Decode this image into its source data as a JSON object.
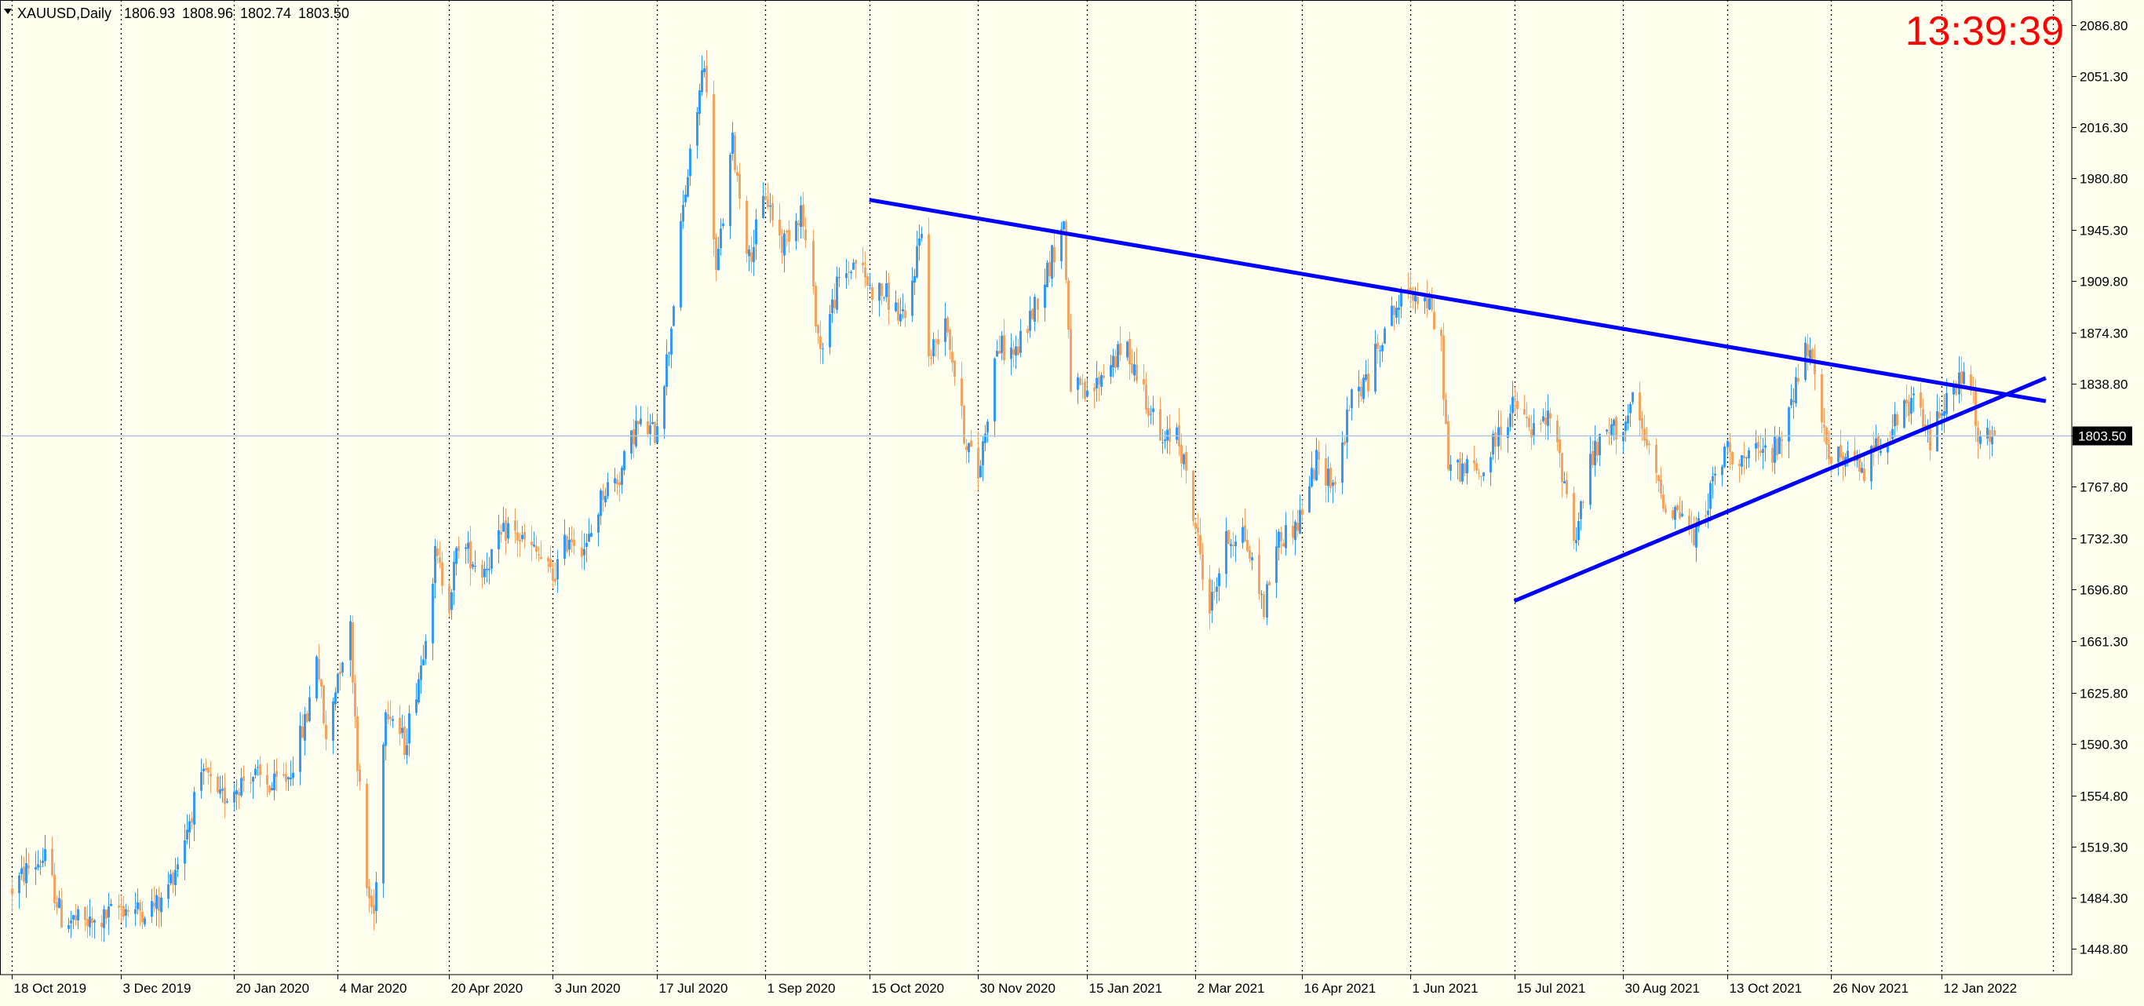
{
  "chart_data": {
    "type": "candlestick",
    "header": {
      "symbol_timeframe": "XAUUSD,Daily",
      "open": "1806.93",
      "high": "1808.96",
      "low": "1802.74",
      "close": "1803.50"
    },
    "clock": "13:39:39",
    "current_price": 1803.5,
    "current_price_label": "1803.50",
    "ylim": [
      1431.0,
      2104.0
    ],
    "y_ticks": [
      "2086.80",
      "2051.30",
      "2016.30",
      "1980.80",
      "1945.30",
      "1909.80",
      "1874.30",
      "1838.80",
      "1803.50",
      "1767.80",
      "1732.30",
      "1696.80",
      "1661.30",
      "1625.80",
      "1590.30",
      "1554.80",
      "1519.30",
      "1484.30",
      "1448.80"
    ],
    "x_ticks": [
      "18 Oct 2019",
      "3 Dec 2019",
      "20 Jan 2020",
      "4 Mar 2020",
      "20 Apr 2020",
      "3 Jun 2020",
      "17 Jul 2020",
      "1 Sep 2020",
      "15 Oct 2020",
      "30 Nov 2020",
      "15 Jan 2021",
      "2 Mar 2021",
      "16 Apr 2021",
      "1 Jun 2021",
      "15 Jul 2021",
      "30 Aug 2021",
      "13 Oct 2021",
      "26 Nov 2021",
      "12 Jan 2022"
    ],
    "price_path": [
      [
        "2019-10-18",
        1490
      ],
      [
        "2019-10-25",
        1505
      ],
      [
        "2019-11-01",
        1511
      ],
      [
        "2019-11-08",
        1470
      ],
      [
        "2019-11-15",
        1468
      ],
      [
        "2019-11-22",
        1465
      ],
      [
        "2019-12-03",
        1478
      ],
      [
        "2019-12-10",
        1475
      ],
      [
        "2019-12-20",
        1480
      ],
      [
        "2019-12-27",
        1510
      ],
      [
        "2020-01-03",
        1550
      ],
      [
        "2020-01-08",
        1570
      ],
      [
        "2020-01-13",
        1550
      ],
      [
        "2020-01-20",
        1560
      ],
      [
        "2020-01-27",
        1570
      ],
      [
        "2020-02-05",
        1560
      ],
      [
        "2020-02-12",
        1568
      ],
      [
        "2020-02-20",
        1610
      ],
      [
        "2020-02-24",
        1655
      ],
      [
        "2020-02-28",
        1590
      ],
      [
        "2020-03-04",
        1640
      ],
      [
        "2020-03-09",
        1670
      ],
      [
        "2020-03-12",
        1580
      ],
      [
        "2020-03-16",
        1490
      ],
      [
        "2020-03-19",
        1472
      ],
      [
        "2020-03-24",
        1620
      ],
      [
        "2020-04-01",
        1590
      ],
      [
        "2020-04-08",
        1645
      ],
      [
        "2020-04-14",
        1720
      ],
      [
        "2020-04-20",
        1690
      ],
      [
        "2020-04-24",
        1730
      ],
      [
        "2020-05-04",
        1710
      ],
      [
        "2020-05-15",
        1740
      ],
      [
        "2020-05-18",
        1735
      ],
      [
        "2020-05-28",
        1720
      ],
      [
        "2020-06-03",
        1705
      ],
      [
        "2020-06-10",
        1735
      ],
      [
        "2020-06-17",
        1725
      ],
      [
        "2020-06-24",
        1765
      ],
      [
        "2020-07-01",
        1775
      ],
      [
        "2020-07-08",
        1810
      ],
      [
        "2020-07-16",
        1805
      ],
      [
        "2020-07-22",
        1865
      ],
      [
        "2020-07-28",
        1960
      ],
      [
        "2020-08-04",
        2040
      ],
      [
        "2020-08-06",
        2065
      ],
      [
        "2020-08-11",
        1915
      ],
      [
        "2020-08-18",
        2005
      ],
      [
        "2020-08-25",
        1925
      ],
      [
        "2020-09-01",
        1970
      ],
      [
        "2020-09-08",
        1935
      ],
      [
        "2020-09-16",
        1960
      ],
      [
        "2020-09-24",
        1862
      ],
      [
        "2020-10-01",
        1905
      ],
      [
        "2020-10-09",
        1925
      ],
      [
        "2020-10-15",
        1905
      ],
      [
        "2020-10-22",
        1900
      ],
      [
        "2020-10-30",
        1880
      ],
      [
        "2020-11-06",
        1950
      ],
      [
        "2020-11-09",
        1855
      ],
      [
        "2020-11-16",
        1888
      ],
      [
        "2020-11-24",
        1805
      ],
      [
        "2020-11-30",
        1775
      ],
      [
        "2020-12-08",
        1865
      ],
      [
        "2020-12-16",
        1860
      ],
      [
        "2020-12-21",
        1880
      ],
      [
        "2021-01-05",
        1950
      ],
      [
        "2021-01-08",
        1840
      ],
      [
        "2021-01-15",
        1828
      ],
      [
        "2021-01-25",
        1855
      ],
      [
        "2021-02-01",
        1862
      ],
      [
        "2021-02-08",
        1835
      ],
      [
        "2021-02-16",
        1795
      ],
      [
        "2021-02-22",
        1810
      ],
      [
        "2021-03-02",
        1740
      ],
      [
        "2021-03-08",
        1683
      ],
      [
        "2021-03-15",
        1730
      ],
      [
        "2021-03-22",
        1738
      ],
      [
        "2021-03-31",
        1685
      ],
      [
        "2021-04-05",
        1730
      ],
      [
        "2021-04-14",
        1742
      ],
      [
        "2021-04-22",
        1785
      ],
      [
        "2021-04-30",
        1770
      ],
      [
        "2021-05-07",
        1830
      ],
      [
        "2021-05-14",
        1842
      ],
      [
        "2021-05-21",
        1880
      ],
      [
        "2021-06-01",
        1905
      ],
      [
        "2021-06-08",
        1895
      ],
      [
        "2021-06-14",
        1865
      ],
      [
        "2021-06-17",
        1780
      ],
      [
        "2021-06-28",
        1780
      ],
      [
        "2021-07-01",
        1775
      ],
      [
        "2021-07-08",
        1805
      ],
      [
        "2021-07-15",
        1825
      ],
      [
        "2021-07-22",
        1805
      ],
      [
        "2021-07-30",
        1815
      ],
      [
        "2021-08-06",
        1765
      ],
      [
        "2021-08-09",
        1730
      ],
      [
        "2021-08-16",
        1785
      ],
      [
        "2021-08-23",
        1805
      ],
      [
        "2021-08-30",
        1810
      ],
      [
        "2021-09-03",
        1825
      ],
      [
        "2021-09-10",
        1790
      ],
      [
        "2021-09-17",
        1755
      ],
      [
        "2021-09-24",
        1750
      ],
      [
        "2021-09-29",
        1730
      ],
      [
        "2021-10-05",
        1760
      ],
      [
        "2021-10-13",
        1795
      ],
      [
        "2021-10-20",
        1785
      ],
      [
        "2021-10-26",
        1790
      ],
      [
        "2021-11-04",
        1795
      ],
      [
        "2021-11-08",
        1825
      ],
      [
        "2021-11-16",
        1865
      ],
      [
        "2021-11-22",
        1810
      ],
      [
        "2021-11-26",
        1790
      ],
      [
        "2021-12-03",
        1785
      ],
      [
        "2021-12-10",
        1780
      ],
      [
        "2021-12-16",
        1800
      ],
      [
        "2021-12-23",
        1810
      ],
      [
        "2021-12-31",
        1828
      ],
      [
        "2022-01-07",
        1800
      ],
      [
        "2022-01-12",
        1825
      ],
      [
        "2022-01-18",
        1835
      ],
      [
        "2022-01-20",
        1845
      ],
      [
        "2022-01-25",
        1830
      ],
      [
        "2022-01-27",
        1795
      ],
      [
        "2022-01-31",
        1800
      ],
      [
        "2022-02-03",
        1803.5
      ]
    ],
    "trendlines": [
      {
        "name": "upper",
        "color": "#0000FF",
        "from": [
          "2020-10-15",
          1966.0
        ],
        "to": [
          "2022-02-25",
          1827.0
        ]
      },
      {
        "name": "lower",
        "color": "#0000FF",
        "from": [
          "2021-07-15",
          1689.0
        ],
        "to": [
          "2022-02-25",
          1843.0
        ]
      }
    ],
    "colors": {
      "background": "#FFFFF0",
      "bull": "#3399FF",
      "bear": "#F4A460",
      "grid": "#000000",
      "price_line": "#A9C3DB",
      "price_label_bg": "#000000",
      "price_label_fg": "#FFFFFF",
      "clock": "#FF0000",
      "trendline": "#0000FF"
    }
  }
}
